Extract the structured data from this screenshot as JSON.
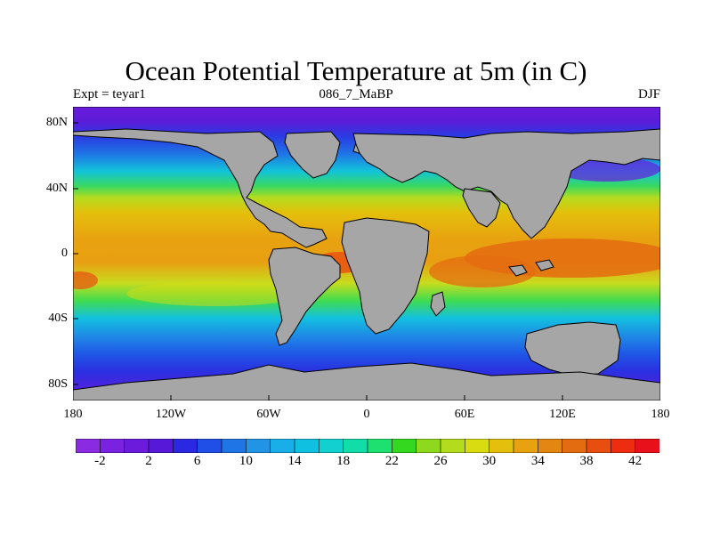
{
  "title": "Ocean Potential Temperature at 5m (in C)",
  "subtitle_left": "Expt = teyar1",
  "subtitle_center": "086_7_MaBP",
  "subtitle_right": "DJF",
  "lat_labels": [
    "80N",
    "40N",
    "0",
    "40S",
    "80S"
  ],
  "lon_labels": [
    "180",
    "120W",
    "60W",
    "0",
    "60E",
    "120E",
    "180"
  ],
  "colorbar": {
    "labels": [
      "-2",
      "2",
      "6",
      "10",
      "14",
      "18",
      "22",
      "26",
      "30",
      "34",
      "38",
      "42"
    ],
    "colors": [
      "#8a2be2",
      "#7a22e0",
      "#6a1bdc",
      "#5818d8",
      "#2a28e0",
      "#1f4fe6",
      "#1f74e6",
      "#2294e6",
      "#19aee8",
      "#10c0e0",
      "#12d0d0",
      "#12dca8",
      "#1ee070",
      "#34d81e",
      "#8ed81e",
      "#b4dc1e",
      "#d8dc10",
      "#e4c00c",
      "#e8a210",
      "#e48612",
      "#e46c10",
      "#e84e10",
      "#ee2c10",
      "#e8101a"
    ]
  },
  "colors": {
    "land": "#a6a6a6",
    "coast": "#000000"
  }
}
